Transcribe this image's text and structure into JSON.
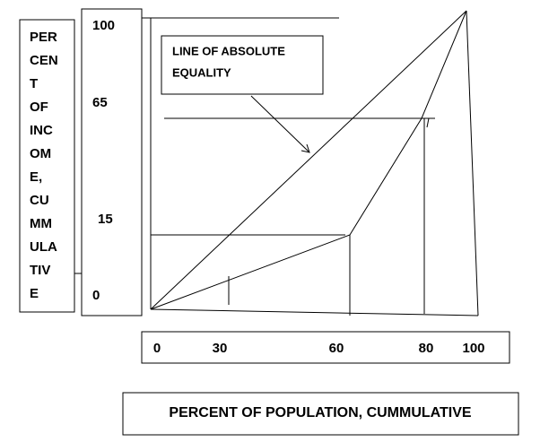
{
  "y_axis": {
    "label_lines": [
      "PER",
      "CEN",
      "T",
      "OF",
      "INC",
      "OM",
      "E,",
      "CU",
      "MM",
      "ULA",
      "TIV",
      "E"
    ],
    "ticks": [
      "100",
      "65",
      "15",
      "0"
    ]
  },
  "x_axis": {
    "ticks": [
      "0",
      "30",
      "60",
      "80",
      "100"
    ],
    "label": "PERCENT OF POPULATION, CUMMULATIVE"
  },
  "annotation": {
    "lines": [
      "LINE OF ABSOLUTE",
      "EQUALITY"
    ]
  }
}
